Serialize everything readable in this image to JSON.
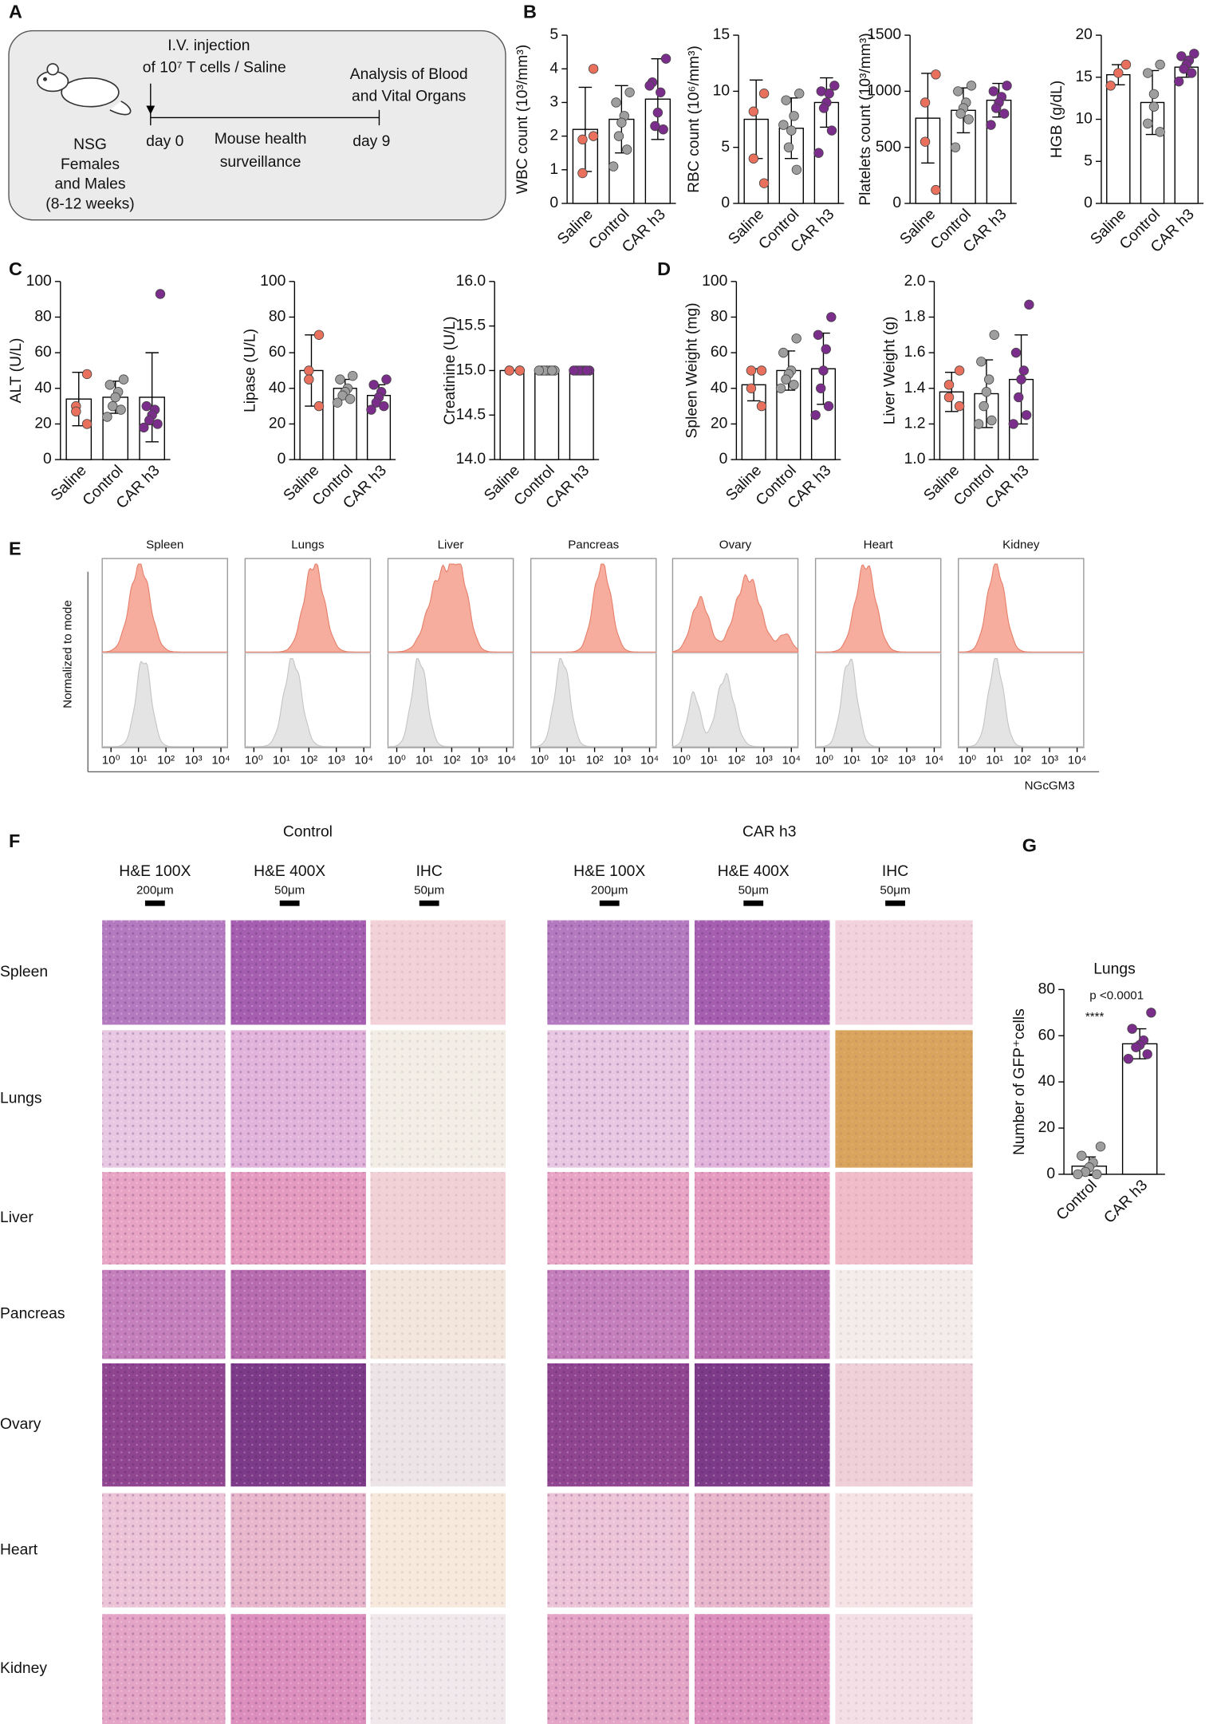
{
  "panel_labels": [
    "A",
    "B",
    "C",
    "D",
    "E",
    "F",
    "G"
  ],
  "schematic": {
    "injection": [
      "I.V. injection",
      "of 10⁷ T cells / Saline"
    ],
    "analysis": [
      "Analysis of Blood",
      "and Vital Organs"
    ],
    "mice": [
      "NSG",
      "Females",
      "and Males",
      "(8-12 weeks)"
    ],
    "day0": "day 0",
    "surveillance": [
      "Mouse health",
      "surveillance"
    ],
    "day9": "day 9"
  },
  "chart_data": [
    {
      "type": "bar",
      "ylabel": "WBC count (10³/mm³)",
      "categories": [
        "Saline",
        "Control",
        "CAR h3"
      ],
      "values": [
        2.2,
        2.5,
        3.1
      ],
      "errors": [
        1.25,
        1.0,
        1.2
      ],
      "points": [
        [
          4.0,
          1.9,
          0.9,
          2.0
        ],
        [
          3.3,
          3.0,
          2.6,
          2.4,
          2.0,
          1.6,
          1.1
        ],
        [
          4.3,
          3.6,
          3.3,
          2.7,
          2.3,
          2.2,
          3.5
        ]
      ],
      "colors": [
        "#e8705c",
        "#9e9e9e",
        "#7b2d8b"
      ],
      "ylim": [
        0,
        5
      ],
      "yticks": [
        0,
        1,
        2,
        3,
        4,
        5
      ]
    },
    {
      "type": "bar",
      "ylabel": "RBC count (10⁶/mm³)",
      "categories": [
        "Saline",
        "Control",
        "CAR h3"
      ],
      "values": [
        7.5,
        6.7,
        9.0
      ],
      "errors": [
        3.5,
        2.7,
        2.2
      ],
      "points": [
        [
          9.8,
          8.2,
          4.0,
          1.8
        ],
        [
          9.8,
          9.2,
          7.8,
          6.5,
          5.0,
          3.0,
          7.0
        ],
        [
          10.5,
          10.0,
          9.8,
          9.0,
          8.5,
          6.5,
          4.5
        ]
      ],
      "colors": [
        "#e8705c",
        "#9e9e9e",
        "#7b2d8b"
      ],
      "ylim": [
        0,
        15
      ],
      "yticks": [
        0,
        5,
        10,
        15
      ]
    },
    {
      "type": "bar",
      "ylabel": "Platelets count (10³/mm³)",
      "categories": [
        "Saline",
        "Control",
        "CAR h3"
      ],
      "values": [
        760,
        830,
        920
      ],
      "errors": [
        400,
        200,
        150
      ],
      "points": [
        [
          1150,
          900,
          550,
          120
        ],
        [
          1050,
          1000,
          900,
          850,
          800,
          750,
          500
        ],
        [
          1050,
          1000,
          950,
          900,
          850,
          800,
          700
        ]
      ],
      "colors": [
        "#e8705c",
        "#9e9e9e",
        "#7b2d8b"
      ],
      "ylim": [
        0,
        1500
      ],
      "yticks": [
        0,
        500,
        1000,
        1500
      ]
    },
    {
      "type": "bar",
      "ylabel": "HGB (g/dL)",
      "categories": [
        "Saline",
        "Control",
        "CAR h3"
      ],
      "values": [
        15.3,
        12,
        16.2
      ],
      "errors": [
        1.2,
        3.8,
        1.2
      ],
      "points": [
        [
          16.5,
          15.5,
          14.0
        ],
        [
          16.5,
          15.5,
          13,
          11.5,
          9.5,
          8.5
        ],
        [
          17.8,
          17.5,
          17,
          16.5,
          16,
          15.5,
          14.5
        ]
      ],
      "colors": [
        "#e8705c",
        "#9e9e9e",
        "#7b2d8b"
      ],
      "ylim": [
        0,
        20
      ],
      "yticks": [
        0,
        5,
        10,
        15,
        20
      ]
    },
    {
      "type": "bar",
      "ylabel": "ALT (U/L)",
      "categories": [
        "Saline",
        "Control",
        "CAR h3"
      ],
      "values": [
        34,
        35,
        35
      ],
      "errors": [
        15,
        9,
        25
      ],
      "points": [
        [
          48,
          30,
          27,
          20
        ],
        [
          45,
          42,
          38,
          35,
          30,
          28,
          24
        ],
        [
          93,
          30,
          28,
          25,
          22,
          20,
          18
        ]
      ],
      "colors": [
        "#e8705c",
        "#9e9e9e",
        "#7b2d8b"
      ],
      "ylim": [
        0,
        100
      ],
      "yticks": [
        0,
        20,
        40,
        60,
        80,
        100
      ]
    },
    {
      "type": "bar",
      "ylabel": "Lipase (U/L)",
      "categories": [
        "Saline",
        "Control",
        "CAR h3"
      ],
      "values": [
        50,
        40,
        36
      ],
      "errors": [
        20,
        5,
        6
      ],
      "points": [
        [
          70,
          50,
          45,
          30
        ],
        [
          47,
          45,
          40,
          38,
          36,
          34,
          32
        ],
        [
          45,
          42,
          38,
          35,
          32,
          30,
          28
        ]
      ],
      "colors": [
        "#e8705c",
        "#9e9e9e",
        "#7b2d8b"
      ],
      "ylim": [
        0,
        100
      ],
      "yticks": [
        0,
        20,
        40,
        60,
        80,
        100
      ]
    },
    {
      "type": "bar",
      "ylabel": "Creatinine (U/L)",
      "categories": [
        "Saline",
        "Control",
        "CAR h3"
      ],
      "values": [
        15,
        15,
        15
      ],
      "errors": [
        0,
        0,
        0
      ],
      "points": [
        [
          15,
          15,
          15,
          15
        ],
        [
          15,
          15,
          15,
          15,
          15,
          15,
          15
        ],
        [
          15,
          15,
          15,
          15,
          15,
          15,
          15
        ]
      ],
      "colors": [
        "#e8705c",
        "#9e9e9e",
        "#7b2d8b"
      ],
      "ylim": [
        14,
        16
      ],
      "yticks": [
        {
          "value": 14,
          "label": "14.0"
        },
        {
          "value": 14.5,
          "label": "14.5"
        },
        {
          "value": 15,
          "label": "15.0"
        },
        {
          "value": 15.5,
          "label": "15.5"
        },
        {
          "value": 16,
          "label": "16.0"
        }
      ]
    },
    {
      "type": "bar",
      "ylabel": "Spleen Weight (mg)",
      "categories": [
        "Saline",
        "Control",
        "CAR h3"
      ],
      "values": [
        42,
        50,
        51
      ],
      "errors": [
        9,
        11,
        20
      ],
      "points": [
        [
          50,
          50,
          40,
          30
        ],
        [
          68,
          60,
          50,
          48,
          45,
          42,
          40
        ],
        [
          80,
          70,
          62,
          50,
          40,
          30,
          25
        ]
      ],
      "colors": [
        "#e8705c",
        "#9e9e9e",
        "#7b2d8b"
      ],
      "ylim": [
        0,
        100
      ],
      "yticks": [
        0,
        20,
        40,
        60,
        80,
        100
      ]
    },
    {
      "type": "bar",
      "ylabel": "Liver Weight (g)",
      "categories": [
        "Saline",
        "Control",
        "CAR h3"
      ],
      "values": [
        1.38,
        1.37,
        1.45
      ],
      "errors": [
        0.11,
        0.19,
        0.25
      ],
      "points": [
        [
          1.5,
          1.42,
          1.35,
          1.3
        ],
        [
          1.7,
          1.55,
          1.45,
          1.38,
          1.3,
          1.22,
          1.2
        ],
        [
          1.87,
          1.6,
          1.5,
          1.45,
          1.35,
          1.25,
          1.2
        ]
      ],
      "colors": [
        "#e8705c",
        "#9e9e9e",
        "#7b2d8b"
      ],
      "ylim": [
        1,
        2
      ],
      "yticks": [
        {
          "value": 1,
          "label": "1.0"
        },
        {
          "value": 1.2,
          "label": "1.2"
        },
        {
          "value": 1.4,
          "label": "1.4"
        },
        {
          "value": 1.6,
          "label": "1.6"
        },
        {
          "value": 1.8,
          "label": "1.8"
        },
        {
          "value": 2,
          "label": "2.0"
        }
      ]
    },
    {
      "type": "bar",
      "title": "Lungs",
      "annotations": [
        "p <0.0001",
        "****"
      ],
      "ylabel": "Number of GFP⁺cells",
      "categories": [
        "Control",
        "CAR h3"
      ],
      "values": [
        3.5,
        56.5
      ],
      "errors": [
        4,
        6.5
      ],
      "points": [
        [
          12,
          8,
          5,
          3,
          1,
          0,
          0
        ],
        [
          70,
          63,
          58,
          56,
          55,
          52,
          50
        ]
      ],
      "colors": [
        "#9e9e9e",
        "#7b2d8b"
      ],
      "ylim": [
        0,
        80
      ],
      "yticks": [
        0,
        20,
        40,
        60,
        80
      ]
    }
  ],
  "flow": {
    "organs": [
      "Spleen",
      "Lungs",
      "Liver",
      "Pancreas",
      "Ovary",
      "Heart",
      "Kidney"
    ],
    "ylabel": "Normalized to mode",
    "xlabel": "NGcGM3",
    "xtick_labels": [
      "10⁰",
      "10¹",
      "10²",
      "10³",
      "10⁴"
    ]
  },
  "histology": {
    "groups": [
      "Control",
      "CAR h3"
    ],
    "columns": [
      {
        "label": "H&E 100X",
        "scale": "200μm"
      },
      {
        "label": "H&E 400X",
        "scale": "50μm"
      },
      {
        "label": "IHC",
        "scale": "50μm"
      }
    ],
    "rows": [
      "Spleen",
      "Lungs",
      "Liver",
      "Pancreas",
      "Ovary",
      "Heart",
      "Kidney"
    ]
  }
}
